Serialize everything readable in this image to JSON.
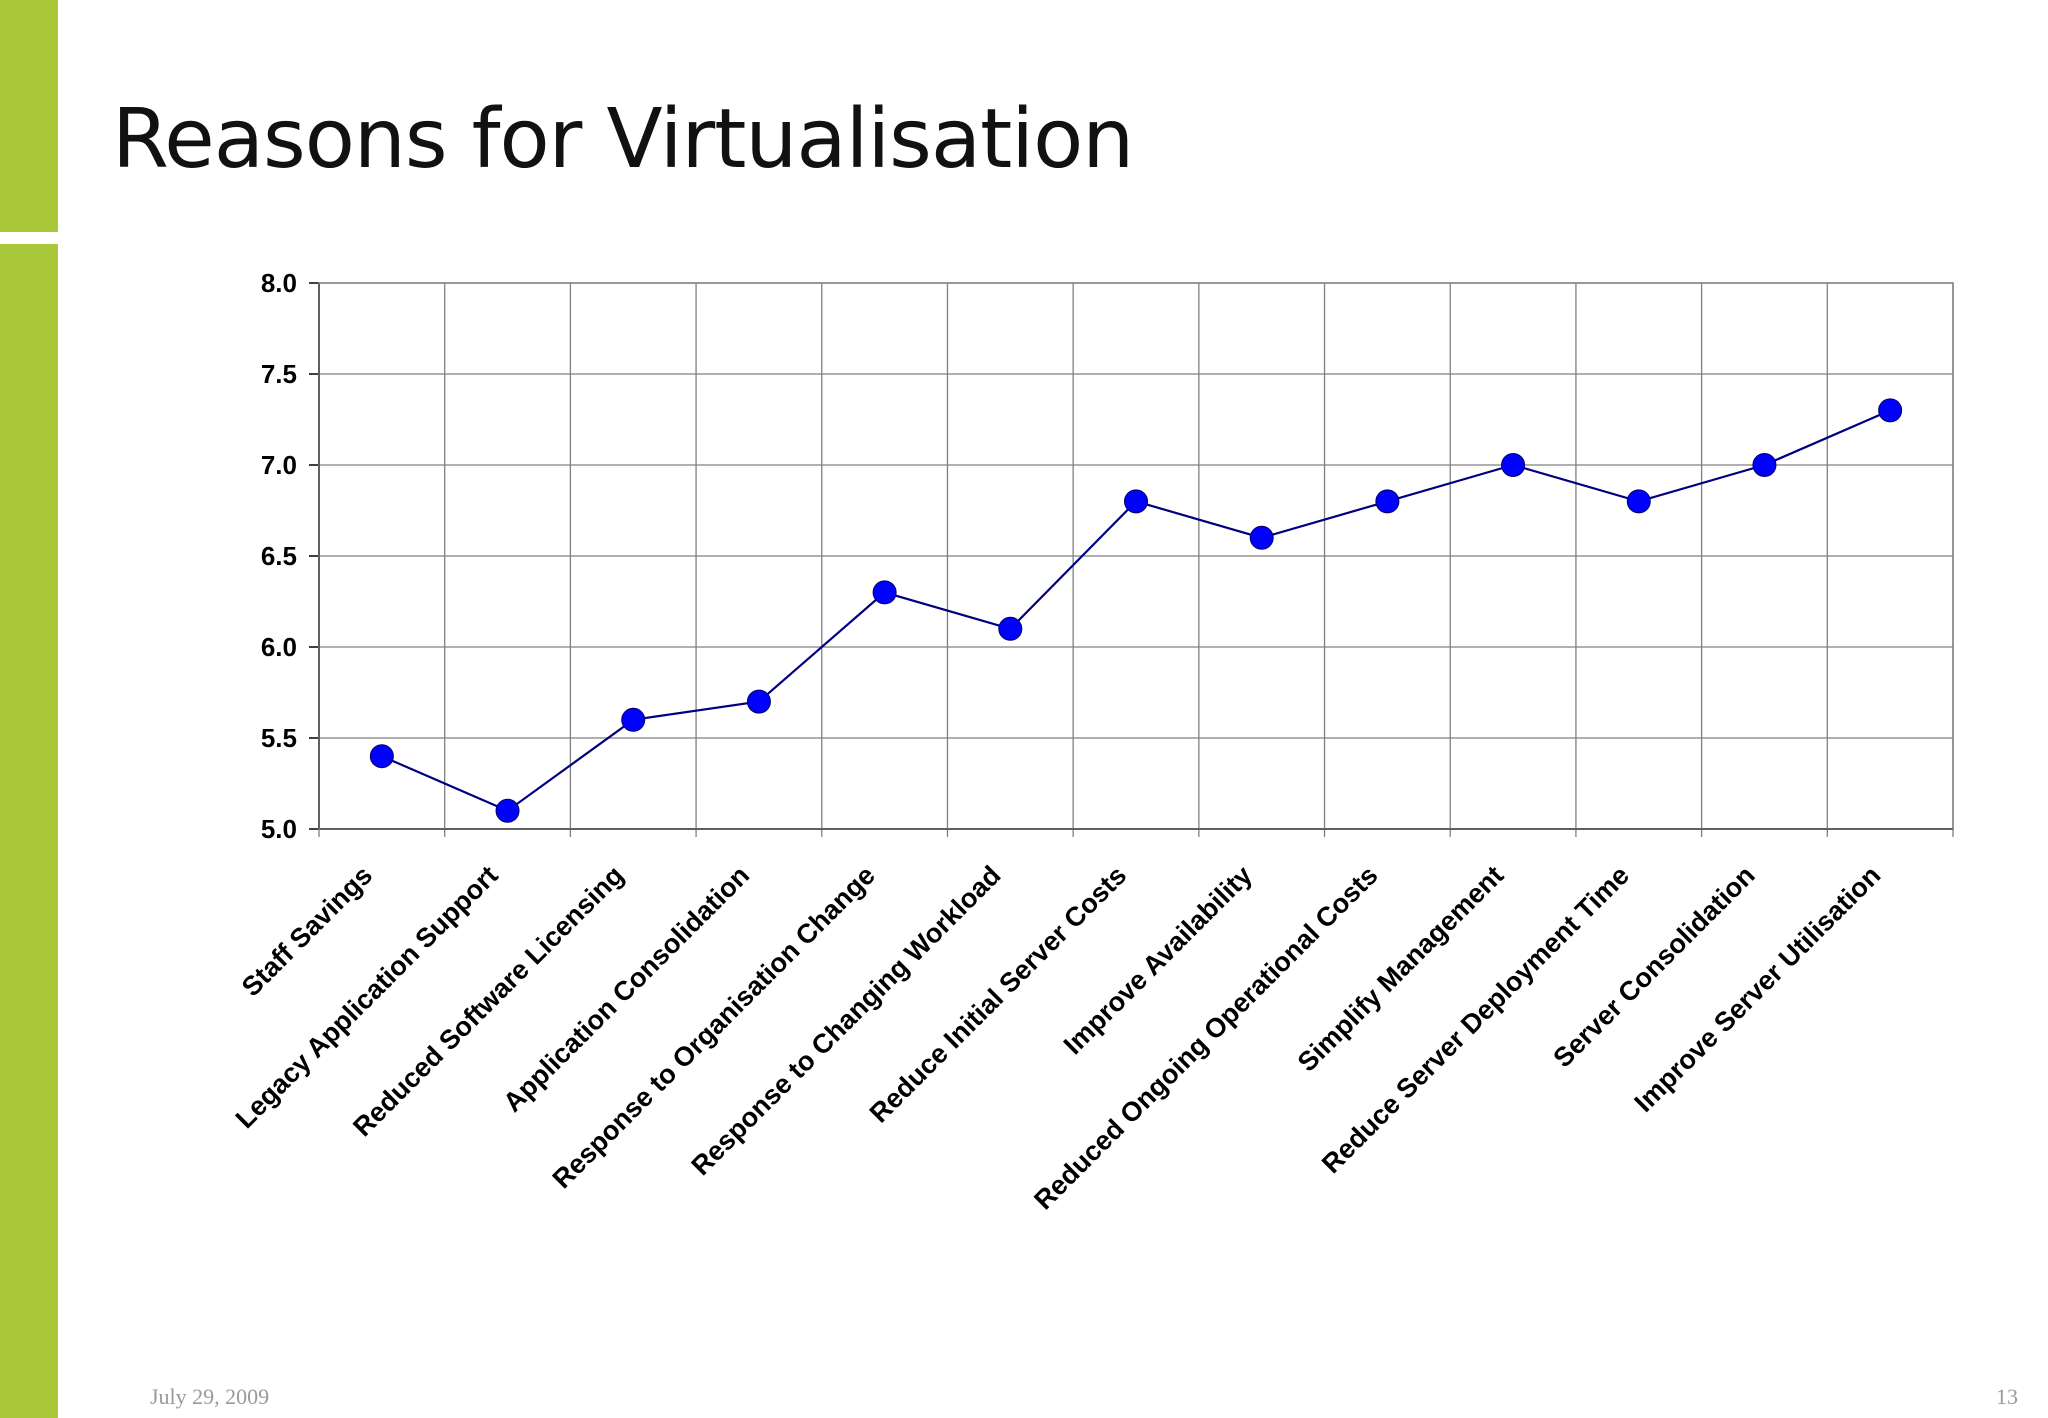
{
  "slide": {
    "title": "Reasons for Virtualisation",
    "date": "July 29, 2009",
    "page_number": "13"
  },
  "colors": {
    "accent": "#a8c83a",
    "line": "#000080",
    "marker": "#0000ff",
    "grid": "#808080"
  },
  "chart_data": {
    "type": "line",
    "title": "",
    "xlabel": "",
    "ylabel": "",
    "ylim": [
      5.0,
      8.0
    ],
    "yticks": [
      "5.0",
      "5.5",
      "6.0",
      "6.5",
      "7.0",
      "7.5",
      "8.0"
    ],
    "grid": true,
    "categories": [
      "Staff Savings",
      "Legacy Application Support",
      "Reduced Software Licensing",
      "Application Consolidation",
      "Response to Organisation Change",
      "Response to Changing Workload",
      "Reduce Initial Server Costs",
      "Improve Availability",
      "Reduced Ongoing Operational Costs",
      "Simplify Management",
      "Reduce Server Deployment Time",
      "Server Consolidation",
      "Improve Server Utilisation"
    ],
    "series": [
      {
        "values": [
          5.4,
          5.1,
          5.6,
          5.7,
          6.3,
          6.1,
          6.8,
          6.6,
          6.8,
          7.0,
          6.8,
          7.0,
          7.3
        ]
      }
    ]
  }
}
